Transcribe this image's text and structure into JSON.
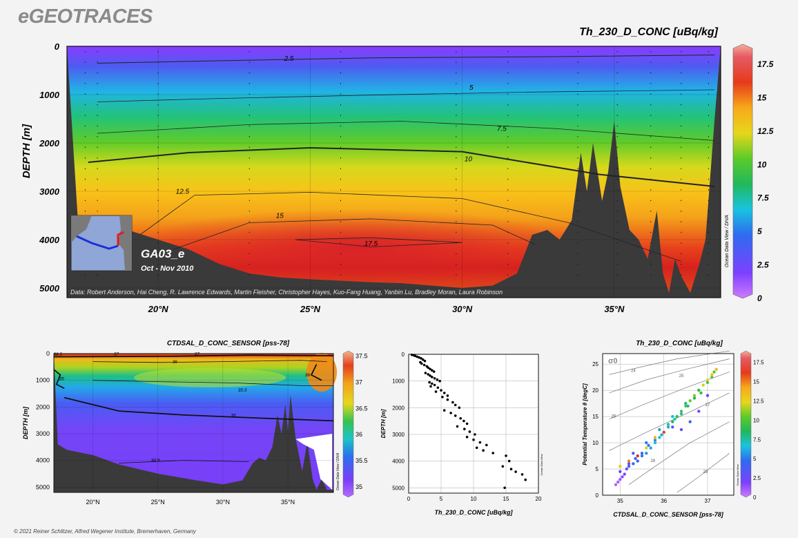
{
  "brand": "eGEOTRACES",
  "footer": "© 2021 Reiner Schlitzer, Alfred Wegener Institute, Bremerhaven, Germany",
  "main": {
    "title": "Th_230_D_CONC [uBq/kg]",
    "ylabel": "DEPTH [m]",
    "section_name": "GA03_e",
    "date": "Oct - Nov 2010",
    "credits": "Data: Robert Anderson, Hai Cheng, R. Lawrence Edwards, Martin Fleisher, Christopher Hayes, Kuo-Fang Huang, Yanbin Lu, Bradley Moran, Laura Robinson",
    "odv_label": "Ocean Data View / DIVA"
  },
  "salinity": {
    "title": "CTDSAL_D_CONC_SENSOR [pss-78]",
    "ylabel": "DEPTH [m]",
    "odv_label": "Ocean Data View / DIVA"
  },
  "profile": {
    "title": "",
    "xlabel": "Th_230_D_CONC [uBq/kg]",
    "ylabel": "DEPTH [m]",
    "odv_label": "Ocean Data View"
  },
  "ts": {
    "title": "Th_230_D_CONC [uBq/kg]",
    "xlabel": "CTDSAL_D_CONC_SENSOR [pss-78]",
    "ylabel": "Potential Temperature θ [degC]",
    "sigma": "σ0",
    "odv_label": "Ocean Data View"
  },
  "chart_data": [
    {
      "type": "heatmap",
      "name": "main-section",
      "title": "Th_230_D_CONC [uBq/kg]",
      "ylabel": "DEPTH [m]",
      "x_ticks": [
        "20°N",
        "25°N",
        "30°N",
        "35°N"
      ],
      "x_tick_values": [
        20,
        25,
        30,
        35
      ],
      "xlim": [
        17,
        38.5
      ],
      "y_ticks": [
        0,
        1000,
        2000,
        3000,
        4000,
        5000
      ],
      "ylim": [
        0,
        5200
      ],
      "colorbar_ticks": [
        0,
        2.5,
        5,
        7.5,
        10,
        12.5,
        15,
        17.5
      ],
      "colorbar_range": [
        0,
        19
      ],
      "contour_labels": [
        "2.5",
        "5",
        "7.5",
        "10",
        "12.5",
        "15",
        "17.5"
      ]
    },
    {
      "type": "heatmap",
      "name": "salinity-section",
      "title": "CTDSAL_D_CONC_SENSOR [pss-78]",
      "ylabel": "DEPTH [m]",
      "x_ticks": [
        "20°N",
        "25°N",
        "30°N",
        "35°N"
      ],
      "x_tick_values": [
        20,
        25,
        30,
        35
      ],
      "xlim": [
        17,
        38.5
      ],
      "y_ticks": [
        0,
        1000,
        2000,
        3000,
        4000,
        5000
      ],
      "ylim": [
        0,
        5200
      ],
      "colorbar_ticks": [
        35,
        35.5,
        36,
        36.5,
        37,
        37.5
      ],
      "colorbar_range": [
        34.8,
        37.6
      ],
      "contour_labels": [
        "36.5",
        "37",
        "37",
        "36",
        "35",
        "36",
        "35.5",
        "35",
        "34.9"
      ]
    },
    {
      "type": "scatter",
      "name": "profile",
      "xlabel": "Th_230_D_CONC [uBq/kg]",
      "ylabel": "DEPTH [m]",
      "xlim": [
        0,
        20
      ],
      "ylim": [
        0,
        5200
      ],
      "x_ticks": [
        0,
        5,
        10,
        15,
        20
      ],
      "y_ticks": [
        0,
        1000,
        2000,
        3000,
        4000,
        5000
      ],
      "x": [
        0.5,
        0.8,
        1.0,
        1.3,
        1.6,
        1.9,
        2.2,
        2.5,
        1.8,
        2.0,
        2.4,
        2.8,
        3.0,
        3.3,
        3.6,
        3.9,
        2.6,
        3.0,
        3.3,
        3.6,
        4.0,
        4.4,
        4.8,
        3.2,
        3.6,
        4.0,
        4.5,
        5.0,
        5.5,
        6.0,
        3.4,
        4.2,
        5.2,
        6.0,
        6.8,
        7.2,
        7.8,
        5.5,
        6.5,
        7.2,
        8.0,
        8.5,
        9.0,
        7.5,
        8.6,
        9.4,
        10.2,
        9.0,
        10.0,
        11.0,
        12.0,
        10.5,
        11.5,
        13.0,
        15.0,
        15.5,
        14.5,
        15.8,
        16.5,
        17.5,
        18.0,
        14.8
      ],
      "y": [
        20,
        40,
        60,
        90,
        120,
        150,
        200,
        250,
        300,
        350,
        400,
        450,
        500,
        550,
        600,
        650,
        700,
        750,
        800,
        850,
        900,
        950,
        1000,
        1050,
        1100,
        1150,
        1250,
        1350,
        1450,
        1550,
        1200,
        1400,
        1600,
        1700,
        1800,
        1900,
        2000,
        2100,
        2200,
        2300,
        2400,
        2500,
        2600,
        2700,
        2800,
        2900,
        3000,
        3100,
        3200,
        3300,
        3400,
        3500,
        3600,
        3700,
        3800,
        4000,
        4200,
        4300,
        4400,
        4500,
        4700,
        5000
      ]
    },
    {
      "type": "scatter",
      "name": "ts-diagram",
      "title": "Th_230_D_CONC [uBq/kg]",
      "xlabel": "CTDSAL_D_CONC_SENSOR [pss-78]",
      "ylabel": "Potential Temperature θ [degC]",
      "xlim": [
        34.6,
        37.6
      ],
      "ylim": [
        0,
        27
      ],
      "x_ticks": [
        35,
        36,
        37
      ],
      "y_ticks": [
        0,
        5,
        10,
        15,
        20,
        25
      ],
      "colorbar_ticks": [
        0,
        2.5,
        5,
        7.5,
        10,
        12.5,
        15,
        17.5
      ],
      "isopycnal_labels": [
        "24",
        "25",
        "26",
        "27",
        "28",
        "29"
      ],
      "x": [
        34.9,
        34.95,
        35.0,
        35.05,
        35.1,
        35.0,
        35.15,
        35.2,
        35.3,
        35.4,
        35.5,
        35.6,
        35.7,
        35.8,
        35.9,
        36.0,
        36.1,
        36.2,
        36.3,
        36.4,
        36.5,
        36.6,
        36.7,
        36.8,
        36.9,
        37.0,
        37.1,
        37.2,
        35.2,
        35.35,
        35.5,
        35.65,
        35.8,
        35.95,
        36.1,
        36.25,
        36.4,
        36.55,
        36.7,
        36.85,
        37.0,
        37.15,
        35.3,
        35.6,
        35.9,
        36.2,
        36.5,
        36.8,
        37.1,
        35.0,
        35.2,
        35.4,
        35.6,
        35.8,
        36.0,
        36.2,
        36.4,
        36.6,
        36.8,
        37.0
      ],
      "y": [
        2.0,
        2.5,
        3.0,
        3.5,
        4.0,
        4.5,
        5.0,
        5.5,
        6.0,
        6.5,
        7.5,
        8.0,
        9.0,
        10.0,
        11.0,
        12.0,
        13.0,
        14.0,
        15.0,
        16.0,
        17.0,
        18.0,
        19.0,
        20.0,
        21.0,
        22.0,
        23.0,
        24.0,
        6.0,
        7.0,
        8.0,
        9.5,
        10.5,
        11.5,
        13.5,
        14.5,
        15.5,
        17.0,
        18.5,
        19.5,
        21.5,
        23.5,
        8.0,
        10.0,
        12.5,
        15.0,
        17.5,
        20.0,
        22.5,
        5.5,
        6.5,
        7.5,
        9.0,
        11.0,
        12.0,
        13.0,
        12.5,
        14.0,
        16.0,
        19.0
      ],
      "values": [
        0.5,
        0.8,
        1.0,
        1.5,
        2.0,
        2.5,
        3.0,
        3.5,
        4.0,
        4.5,
        5.0,
        5.5,
        6.0,
        6.5,
        7.0,
        7.5,
        8.0,
        8.5,
        9.0,
        9.5,
        10.0,
        10.5,
        11.0,
        11.5,
        12.0,
        12.5,
        13.0,
        13.5,
        3.5,
        4.0,
        4.5,
        5.0,
        5.5,
        6.0,
        6.5,
        7.0,
        7.5,
        8.0,
        8.5,
        9.0,
        9.5,
        10.0,
        4.0,
        5.0,
        6.0,
        7.0,
        8.0,
        9.0,
        10.0,
        13.0,
        15.0,
        17.0,
        12.0,
        14.0,
        16.0,
        3.0,
        2.5,
        4.5,
        2.0,
        3.0
      ]
    }
  ]
}
